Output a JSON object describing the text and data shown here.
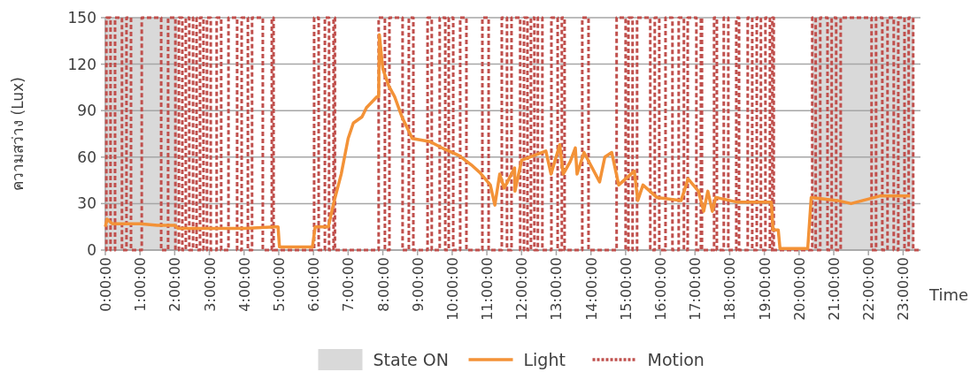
{
  "chart_data": {
    "type": "line",
    "ylabel": "ความสว่าง (Lux)",
    "xlabel": "Time",
    "xlim": [
      0,
      23.5
    ],
    "ylim": [
      0,
      150
    ],
    "yticks": [
      0,
      30,
      60,
      90,
      120,
      150
    ],
    "xticks": [
      {
        "value": 0,
        "label": "0:00:00"
      },
      {
        "value": 1,
        "label": "1:00:00"
      },
      {
        "value": 2,
        "label": "2:00:00"
      },
      {
        "value": 3,
        "label": "3:00:00"
      },
      {
        "value": 4,
        "label": "4:00:00"
      },
      {
        "value": 5,
        "label": "5:00:00"
      },
      {
        "value": 6,
        "label": "6:00:00"
      },
      {
        "value": 7,
        "label": "7:00:00"
      },
      {
        "value": 8,
        "label": "8:00:00"
      },
      {
        "value": 9,
        "label": "9:00:00"
      },
      {
        "value": 10,
        "label": "10:00:00"
      },
      {
        "value": 11,
        "label": "11:00:00"
      },
      {
        "value": 12,
        "label": "12:00:00"
      },
      {
        "value": 13,
        "label": "13:00:00"
      },
      {
        "value": 14,
        "label": "14:00:00"
      },
      {
        "value": 15,
        "label": "15:00:00"
      },
      {
        "value": 16,
        "label": "16:00:00"
      },
      {
        "value": 17,
        "label": "17:00:00"
      },
      {
        "value": 18,
        "label": "18:00:00"
      },
      {
        "value": 19,
        "label": "19:00:00"
      },
      {
        "value": 20,
        "label": "20:00:00"
      },
      {
        "value": 21,
        "label": "21:00:00"
      },
      {
        "value": 22,
        "label": "22:00:00"
      },
      {
        "value": 23,
        "label": "23:00:00"
      }
    ],
    "grid": "y",
    "legend": "bottom",
    "bands": [
      {
        "axis": "x",
        "from": 0,
        "to": 2.08,
        "label": "State ON",
        "color": "#d9d9d9"
      },
      {
        "axis": "x",
        "from": 20.38,
        "to": 23.3,
        "color": "#d9d9d9"
      }
    ],
    "series": [
      {
        "name": "Light",
        "color": "#f39237",
        "line_style": "solid",
        "x": [
          0,
          0.05,
          0.2,
          1.0,
          1.5,
          2.0,
          2.1,
          3.0,
          4.0,
          4.9,
          4.98,
          5.02,
          5.97,
          6.05,
          6.43,
          6.58,
          6.8,
          7.0,
          7.15,
          7.4,
          7.53,
          7.83,
          7.88,
          7.9,
          8.0,
          8.17,
          8.34,
          8.55,
          8.85,
          9.36,
          9.7,
          10.2,
          10.55,
          10.8,
          11.1,
          11.23,
          11.37,
          11.5,
          11.8,
          11.81,
          12.0,
          12.7,
          12.85,
          13.1,
          13.2,
          13.4,
          13.55,
          13.6,
          13.8,
          14.25,
          14.4,
          14.6,
          14.8,
          15.25,
          15.35,
          15.5,
          15.9,
          16.6,
          16.8,
          17.1,
          17.25,
          17.37,
          17.5,
          17.6,
          18.2,
          19.2,
          19.25,
          19.4,
          19.45,
          20.25,
          20.35,
          21.1,
          21.5,
          22.35,
          23.2
        ],
        "values": [
          15,
          20,
          17,
          17,
          16,
          16,
          14,
          14,
          14,
          15,
          15,
          2,
          2,
          15,
          15,
          30,
          49,
          72,
          82,
          86,
          92,
          99,
          99,
          139,
          117,
          106,
          99,
          86,
          72,
          70,
          66,
          61,
          55,
          50,
          42,
          29,
          49,
          40,
          53,
          38,
          58,
          64,
          49,
          68,
          49,
          57,
          66,
          49,
          63,
          44,
          60,
          63,
          42,
          51,
          32,
          42,
          34,
          32,
          46,
          38,
          25,
          38,
          25,
          34,
          31,
          31,
          13,
          13,
          1,
          1,
          34,
          32,
          30,
          35,
          35
        ]
      },
      {
        "name": "Motion",
        "type": "step",
        "color": "#c0504d",
        "line_style": "dashed",
        "x": [
          0,
          0.03,
          0.15,
          0.28,
          0.48,
          0.61,
          0.74,
          1.05,
          1.61,
          1.81,
          2.02,
          2.12,
          2.22,
          2.32,
          2.42,
          2.53,
          2.63,
          2.73,
          2.83,
          2.93,
          3.04,
          3.21,
          3.34,
          3.55,
          3.8,
          3.93,
          4.11,
          4.23,
          4.54,
          4.8,
          4.85,
          6.02,
          6.15,
          6.33,
          6.45,
          6.58,
          6.62,
          7.88,
          8.06,
          8.19,
          8.57,
          8.75,
          8.88,
          9.29,
          9.41,
          9.64,
          9.8,
          9.9,
          10.03,
          10.23,
          10.41,
          10.87,
          11.05,
          11.43,
          11.58,
          11.71,
          11.96,
          12.07,
          12.17,
          12.27,
          12.37,
          12.47,
          12.6,
          12.86,
          13.04,
          13.16,
          13.24,
          13.75,
          13.93,
          14.74,
          15.0,
          15.08,
          15.2,
          15.33,
          15.71,
          15.84,
          15.97,
          16.15,
          16.35,
          16.53,
          16.68,
          16.79,
          17.04,
          17.17,
          17.2,
          17.55,
          17.63,
          17.83,
          17.96,
          18.19,
          18.27,
          18.52,
          18.65,
          18.78,
          18.9,
          19.03,
          19.16,
          19.23,
          19.27,
          20.38,
          20.48,
          20.61,
          20.82,
          20.94,
          21.07,
          21.2,
          22.09,
          22.22,
          22.4,
          22.55,
          22.73,
          22.86,
          23.04,
          23.16,
          23.29,
          23.5
        ],
        "values": [
          0,
          150,
          0,
          150,
          0,
          150,
          0,
          150,
          0,
          150,
          0,
          150,
          0,
          150,
          0,
          150,
          0,
          150,
          0,
          150,
          0,
          150,
          0,
          150,
          0,
          150,
          0,
          150,
          0,
          150,
          0,
          150,
          0,
          150,
          0,
          150,
          0,
          150,
          0,
          150,
          0,
          150,
          0,
          150,
          0,
          150,
          0,
          150,
          0,
          150,
          0,
          150,
          0,
          150,
          0,
          150,
          0,
          150,
          0,
          150,
          0,
          150,
          0,
          150,
          0,
          150,
          0,
          150,
          0,
          150,
          0,
          150,
          0,
          150,
          0,
          150,
          0,
          150,
          0,
          150,
          0,
          150,
          0,
          150,
          0,
          150,
          0,
          150,
          0,
          150,
          0,
          150,
          0,
          150,
          0,
          150,
          0,
          150,
          0,
          150,
          0,
          150,
          0,
          150,
          0,
          150,
          0,
          150,
          0,
          150,
          0,
          150,
          0,
          150,
          0,
          0
        ]
      }
    ]
  }
}
